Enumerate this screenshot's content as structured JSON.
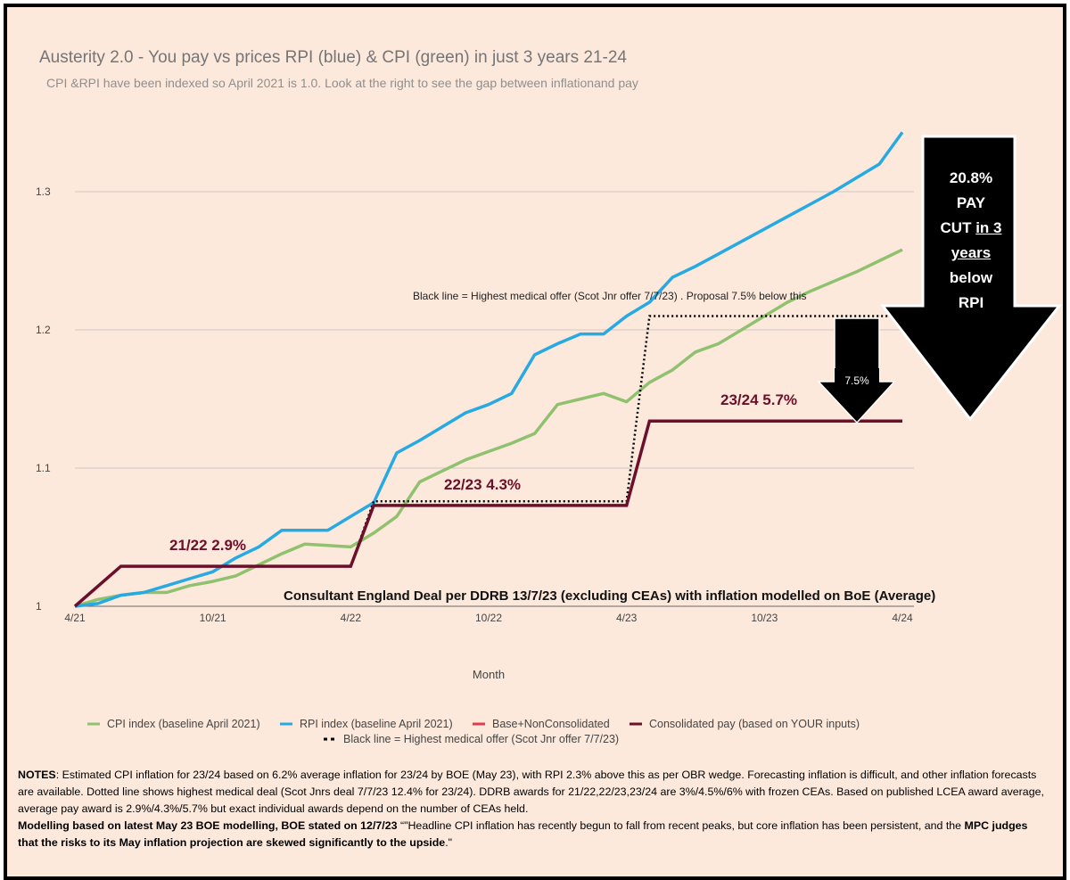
{
  "title": "Austerity 2.0 - You pay vs prices RPI (blue) & CPI (green) in just 3 years 21-24",
  "subtitle": "CPI &RPI have been indexed so April 2021 is 1.0. Look at the right to see the gap between inflationand pay",
  "colors": {
    "cpi": "#8fc16f",
    "rpi": "#27a9e3",
    "base": "#e23b4a",
    "consolidated": "#6b0f2a",
    "offer": "#000000",
    "background": "#fce9dc"
  },
  "chart_data": {
    "type": "line",
    "xlabel": "Month",
    "x_ticks": [
      "4/21",
      "10/21",
      "4/22",
      "10/22",
      "4/23",
      "10/23",
      "4/24"
    ],
    "y_ticks": [
      "1",
      "1.1",
      "1.2",
      "1.3"
    ],
    "ylim": [
      1.0,
      1.345
    ],
    "months": 36,
    "grid": true,
    "legend_position": "bottom",
    "series": [
      {
        "name": "CPI index (baseline April 2021)",
        "key": "cpi",
        "values": [
          1.0,
          1.005,
          1.008,
          1.01,
          1.01,
          1.015,
          1.018,
          1.022,
          1.03,
          1.038,
          1.045,
          1.044,
          1.043,
          1.053,
          1.065,
          1.09,
          1.098,
          1.106,
          1.112,
          1.118,
          1.125,
          1.146,
          1.15,
          1.154,
          1.148,
          1.162,
          1.171,
          1.184,
          1.19,
          1.2,
          1.21,
          1.22,
          1.228,
          1.235,
          1.242,
          1.25,
          1.258
        ]
      },
      {
        "name": "RPI index (baseline April 2021)",
        "key": "rpi",
        "values": [
          1.0,
          1.002,
          1.008,
          1.01,
          1.015,
          1.02,
          1.025,
          1.035,
          1.043,
          1.055,
          1.055,
          1.055,
          1.065,
          1.075,
          1.111,
          1.12,
          1.13,
          1.14,
          1.146,
          1.154,
          1.182,
          1.19,
          1.197,
          1.197,
          1.21,
          1.22,
          1.238,
          1.246,
          1.255,
          1.264,
          1.273,
          1.282,
          1.291,
          1.3,
          1.31,
          1.32,
          1.343
        ]
      },
      {
        "name": "Base+NonConsolidated",
        "key": "base",
        "values": []
      },
      {
        "name": "Consolidated pay (based on YOUR inputs)",
        "key": "consolidated",
        "points": [
          [
            0,
            1.0
          ],
          [
            2,
            1.029
          ],
          [
            12,
            1.029
          ],
          [
            13,
            1.073
          ],
          [
            24,
            1.073
          ],
          [
            25,
            1.134
          ],
          [
            36,
            1.134
          ]
        ]
      },
      {
        "name": "Black line = Highest medical offer (Scot Jnr offer 7/7/23)",
        "key": "offer",
        "points": [
          [
            12,
            1.029
          ],
          [
            13,
            1.076
          ],
          [
            24,
            1.076
          ],
          [
            25,
            1.21
          ],
          [
            36,
            1.21
          ]
        ]
      }
    ],
    "annotations": {
      "a2122": "21/22 2.9%",
      "a2223": "22/23 4.3%",
      "a2324": "23/24 5.7%",
      "deal": "Consultant England Deal per DDRB 13/7/23  (excluding CEAs) with inflation modelled on BoE (Average)",
      "offer_note": "Black line = Highest medical offer (Scot Jnr offer 7/7/23) . Proposal 7.5% below this",
      "gap": "7.5%"
    }
  },
  "big_arrow": {
    "l1": "20.8%",
    "l2": "PAY",
    "l3a": "CUT ",
    "l3b": "in 3",
    "l4": "years",
    "l5": "below",
    "l6": "RPI"
  },
  "notes": {
    "p1_label": "NOTES",
    "p1_text": ": Estimated CPI inflation for 23/24 based on 6.2% average inflation for 23/24 by BOE (May 23), with RPI 2.3% above this as per OBR wedge. Forecasting inflation is difficult, and other inflation forecasts are available. Dotted line shows highest medical deal (Scot Jnrs deal 7/7/23 12.4% for 23/24). DDRB awards for 21/22,22/23,23/24 are 3%/4.5%/6% with frozen CEAs. Based on published LCEA award average, average pay award is 2.9%/4.3%/5.7% but exact individual awards depend on the number of CEAs held.",
    "p2_bold": "Modelling based on latest  May 23 BOE modelling, BOE stated on 12/7/23",
    "p2_text": " “\"Headline CPI inflation has recently begun to fall from recent peaks, but core inflation has been persistent, and the ",
    "p2_bold2": "MPC judges that the risks to its May inflation projection are skewed significantly to the upside",
    "p2_end": ".\""
  }
}
